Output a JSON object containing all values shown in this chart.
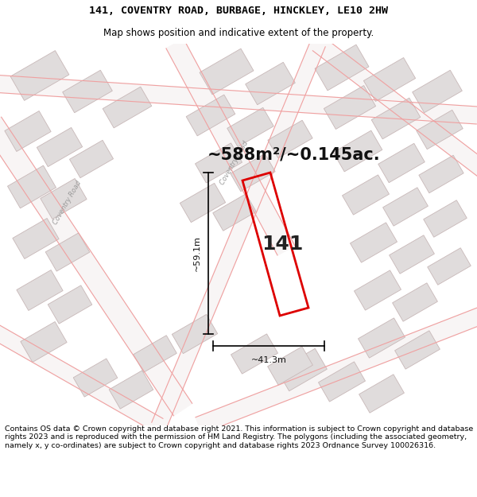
{
  "title_line1": "141, COVENTRY ROAD, BURBAGE, HINCKLEY, LE10 2HW",
  "title_line2": "Map shows position and indicative extent of the property.",
  "area_text": "~588m²/~0.145ac.",
  "label_141": "141",
  "dim_vertical": "~59.1m",
  "dim_horizontal": "~41.3m",
  "footer_text": "Contains OS data © Crown copyright and database right 2021. This information is subject to Crown copyright and database rights 2023 and is reproduced with the permission of HM Land Registry. The polygons (including the associated geometry, namely x, y co-ordinates) are subject to Crown copyright and database rights 2023 Ordnance Survey 100026316.",
  "bg_color": "#ffffff",
  "map_bg": "#ffffff",
  "road_color": "#f0a0a0",
  "building_fill": "#e0dcdc",
  "building_edge": "#c8b8b8",
  "plot_color": "#dd0000",
  "title_fontsize": 9.5,
  "subtitle_fontsize": 8.5,
  "footer_fontsize": 6.8,
  "area_fontsize": 15,
  "dim_fontsize": 8,
  "label_fontsize": 18
}
